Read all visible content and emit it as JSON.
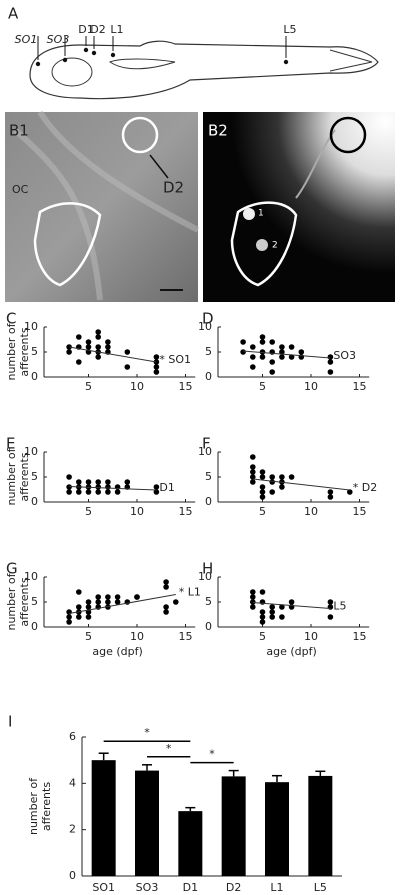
{
  "panel_a": {
    "label": "A",
    "markers": [
      "SO1",
      "SO3",
      "D1",
      "D2",
      "L1",
      "L5"
    ]
  },
  "panel_b": {
    "b1": {
      "label": "B1",
      "region": "OC",
      "target": "D2"
    },
    "b2": {
      "label": "B2",
      "cells": [
        "1",
        "2"
      ]
    }
  },
  "chart_data": [
    {
      "type": "scatter",
      "panel_label": "C",
      "annotation": "* SO1",
      "ylabel": "number of afferents",
      "x": [
        3,
        3,
        4,
        4,
        4,
        5,
        5,
        5,
        6,
        6,
        6,
        6,
        6,
        7,
        7,
        7,
        9,
        9,
        12,
        12,
        12,
        12
      ],
      "y": [
        6,
        5,
        6,
        3,
        8,
        7,
        6,
        5,
        9,
        8,
        6,
        5,
        4,
        7,
        6,
        5,
        5,
        2,
        3,
        2,
        1,
        4
      ],
      "fit": {
        "x": [
          3,
          12
        ],
        "y": [
          6,
          3
        ]
      },
      "xlim": [
        0,
        16
      ],
      "ylim": [
        0,
        10
      ],
      "xticks": [
        5,
        10,
        15
      ],
      "yticks": [
        0,
        5,
        10
      ]
    },
    {
      "type": "scatter",
      "panel_label": "D",
      "annotation": "SO3",
      "x": [
        3,
        3,
        4,
        4,
        4,
        5,
        5,
        5,
        5,
        6,
        6,
        6,
        6,
        7,
        7,
        7,
        8,
        8,
        9,
        9,
        12,
        12,
        12
      ],
      "y": [
        5,
        7,
        6,
        4,
        2,
        8,
        5,
        4,
        7,
        5,
        3,
        1,
        7,
        6,
        4,
        5,
        4,
        6,
        5,
        4,
        4,
        3,
        1
      ],
      "fit": {
        "x": [
          3,
          12
        ],
        "y": [
          5.2,
          3.8
        ]
      },
      "xlim": [
        0,
        16
      ],
      "ylim": [
        0,
        10
      ],
      "xticks": [
        5,
        10,
        15
      ],
      "yticks": [
        0,
        5,
        10
      ]
    },
    {
      "type": "scatter",
      "panel_label": "E",
      "annotation": "D1",
      "ylabel": "number of afferents",
      "x": [
        3,
        3,
        3,
        4,
        4,
        4,
        5,
        5,
        5,
        6,
        6,
        6,
        7,
        7,
        7,
        8,
        8,
        9,
        9,
        12,
        12
      ],
      "y": [
        5,
        3,
        2,
        4,
        3,
        2,
        4,
        3,
        2,
        4,
        3,
        2,
        4,
        3,
        2,
        3,
        2,
        4,
        3,
        3,
        2
      ],
      "fit": {
        "x": [
          3,
          12
        ],
        "y": [
          3.1,
          2.4
        ]
      },
      "xlim": [
        0,
        16
      ],
      "ylim": [
        0,
        10
      ],
      "xticks": [
        5,
        10,
        15
      ],
      "yticks": [
        0,
        5,
        10
      ]
    },
    {
      "type": "scatter",
      "panel_label": "F",
      "annotation": "* D2",
      "x": [
        4,
        4,
        4,
        4,
        4,
        5,
        5,
        5,
        5,
        5,
        6,
        6,
        6,
        7,
        7,
        7,
        8,
        12,
        12,
        14
      ],
      "y": [
        9,
        7,
        6,
        5,
        4,
        6,
        5,
        3,
        2,
        1,
        5,
        4,
        2,
        5,
        4,
        3,
        5,
        2,
        1,
        2
      ],
      "fit": {
        "x": [
          4,
          14
        ],
        "y": [
          4.6,
          2.4
        ]
      },
      "xlim": [
        0,
        16
      ],
      "ylim": [
        0,
        10
      ],
      "xticks": [
        5,
        10,
        15
      ],
      "yticks": [
        0,
        5,
        10
      ]
    },
    {
      "type": "scatter",
      "panel_label": "G",
      "annotation": "* L1",
      "ylabel": "number of afferents",
      "xlabel": "age (dpf)",
      "x": [
        3,
        3,
        3,
        4,
        4,
        4,
        4,
        5,
        5,
        5,
        5,
        6,
        6,
        6,
        7,
        7,
        7,
        8,
        8,
        9,
        10,
        10,
        13,
        13,
        13,
        13,
        14
      ],
      "y": [
        3,
        2,
        1,
        4,
        3,
        2,
        7,
        5,
        4,
        3,
        2,
        6,
        5,
        4,
        6,
        5,
        4,
        6,
        5,
        5,
        6,
        6,
        9,
        4,
        3,
        8,
        5
      ],
      "fit": {
        "x": [
          3,
          14
        ],
        "y": [
          2.7,
          6.5
        ]
      },
      "xlim": [
        0,
        16
      ],
      "ylim": [
        0,
        10
      ],
      "xticks": [
        5,
        10,
        15
      ],
      "yticks": [
        0,
        5,
        10
      ]
    },
    {
      "type": "scatter",
      "panel_label": "H",
      "annotation": "L5",
      "xlabel": "age (dpf)",
      "x": [
        4,
        4,
        4,
        4,
        5,
        5,
        5,
        5,
        5,
        6,
        6,
        6,
        7,
        7,
        8,
        8,
        12,
        12,
        12
      ],
      "y": [
        7,
        6,
        5,
        4,
        7,
        5,
        3,
        2,
        1,
        4,
        3,
        2,
        4,
        2,
        5,
        4,
        5,
        4,
        2
      ],
      "fit": {
        "x": [
          4,
          12
        ],
        "y": [
          4.9,
          3.7
        ]
      },
      "xlim": [
        0,
        16
      ],
      "ylim": [
        0,
        10
      ],
      "xticks": [
        5,
        10,
        15
      ],
      "yticks": [
        0,
        5,
        10
      ]
    },
    {
      "type": "bar",
      "panel_label": "I",
      "ylabel": "number of afferents",
      "color": "#000000",
      "categories": [
        "SO1",
        "SO3",
        "D1",
        "D2",
        "L1",
        "L5"
      ],
      "values": [
        5.0,
        4.55,
        2.8,
        4.3,
        4.05,
        4.32
      ],
      "errors": [
        0.3,
        0.25,
        0.15,
        0.25,
        0.28,
        0.2
      ],
      "ylim": [
        0,
        6
      ],
      "yticks": [
        0,
        2,
        4,
        6
      ],
      "significance": [
        {
          "pair": [
            0,
            2
          ],
          "label": "*"
        },
        {
          "pair": [
            1,
            2
          ],
          "label": "*"
        },
        {
          "pair": [
            2,
            3
          ],
          "label": "*"
        }
      ]
    }
  ]
}
